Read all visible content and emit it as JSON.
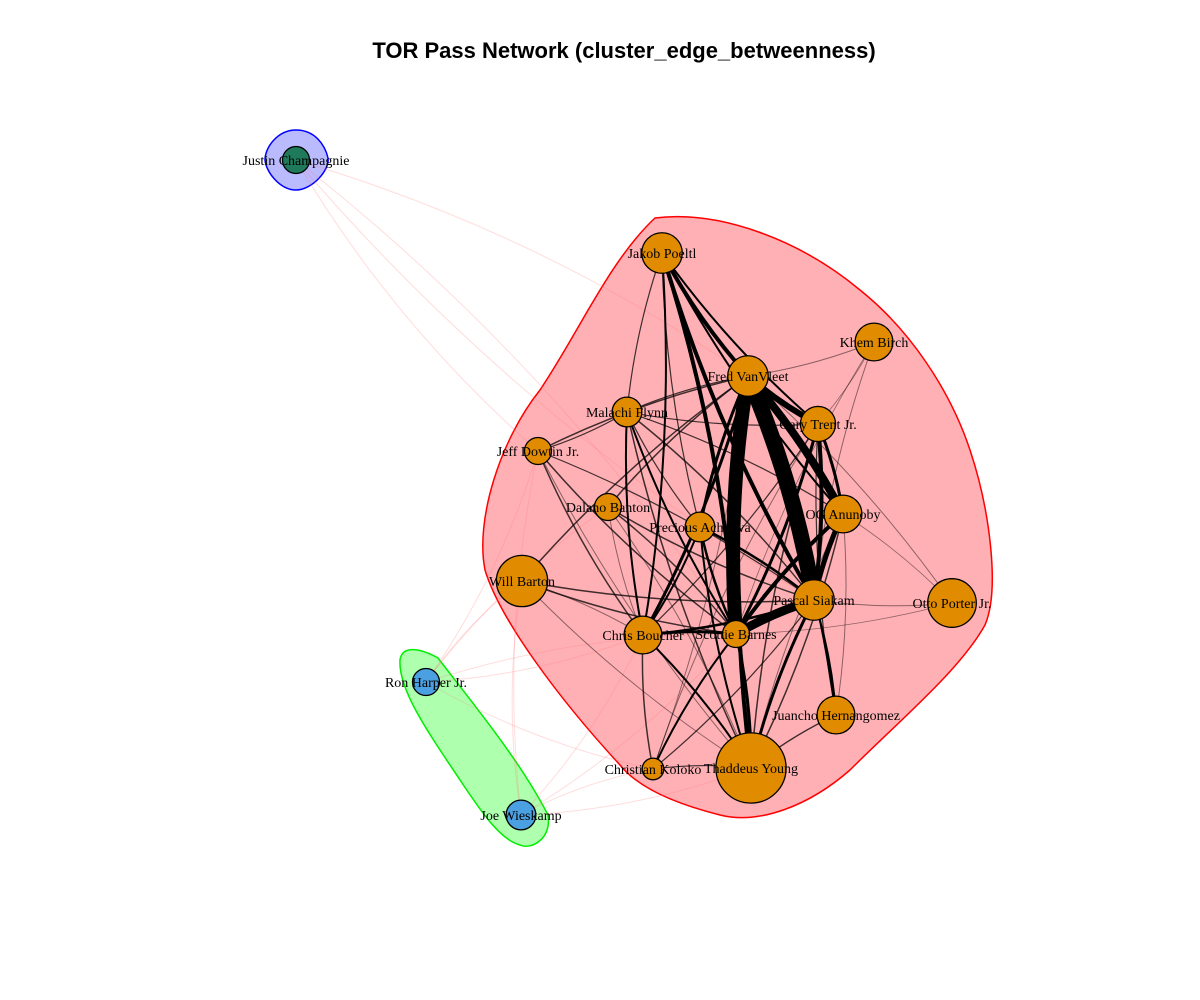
{
  "title": "TOR Pass Network (cluster_edge_betweenness)",
  "clusters": [
    {
      "id": "orange",
      "fill": "#ff8f96",
      "stroke": "#ff0000",
      "members": [
        "Jakob Poeltl",
        "Khem Birch",
        "Fred VanVleet",
        "Malachi Flynn",
        "Gary Trent Jr.",
        "Jeff Dowtin Jr.",
        "Dalano Banton",
        "Precious Achiuwa",
        "OG Anunoby",
        "Will Barton",
        "Pascal Siakam",
        "Otto Porter Jr.",
        "Chris Boucher",
        "Scottie Barnes",
        "Juancho Hernangomez",
        "Christian Koloko",
        "Thaddeus Young"
      ]
    },
    {
      "id": "green",
      "fill": "#8cff8c",
      "stroke": "#00ee00",
      "members": [
        "Ron Harper Jr.",
        "Joe Wieskamp"
      ]
    },
    {
      "id": "blue",
      "fill": "#9c9cff",
      "stroke": "#0000ff",
      "members": [
        "Justin Champagnie"
      ]
    }
  ],
  "node_colors": {
    "orange": "#e08b00",
    "green": "#4aa0e0",
    "blue": "#1e7a5a"
  },
  "nodes": [
    {
      "id": "Justin Champagnie",
      "label": "Justin Champagnie",
      "cluster": "blue",
      "size": 1.0
    },
    {
      "id": "Jakob Poeltl",
      "label": "Jakob Poeltl",
      "cluster": "orange",
      "size": 1.5
    },
    {
      "id": "Khem Birch",
      "label": "Khem Birch",
      "cluster": "orange",
      "size": 1.4
    },
    {
      "id": "Fred VanVleet",
      "label": "Fred VanVleet",
      "cluster": "orange",
      "size": 1.5
    },
    {
      "id": "Malachi Flynn",
      "label": "Malachi Flynn",
      "cluster": "orange",
      "size": 1.1
    },
    {
      "id": "Gary Trent Jr.",
      "label": "Gary Trent Jr.",
      "cluster": "orange",
      "size": 1.3
    },
    {
      "id": "Jeff Dowtin Jr.",
      "label": "Jeff Dowtin Jr.",
      "cluster": "orange",
      "size": 1.0
    },
    {
      "id": "Dalano Banton",
      "label": "Dalano Banton",
      "cluster": "orange",
      "size": 1.0
    },
    {
      "id": "Precious Achiuwa",
      "label": "Precious Achiuwa",
      "cluster": "orange",
      "size": 1.1
    },
    {
      "id": "OG Anunoby",
      "label": "OG Anunoby",
      "cluster": "orange",
      "size": 1.4
    },
    {
      "id": "Will Barton",
      "label": "Will Barton",
      "cluster": "orange",
      "size": 1.9
    },
    {
      "id": "Pascal Siakam",
      "label": "Pascal Siakam",
      "cluster": "orange",
      "size": 1.5
    },
    {
      "id": "Otto Porter Jr.",
      "label": "Otto Porter Jr.",
      "cluster": "orange",
      "size": 1.8
    },
    {
      "id": "Chris Boucher",
      "label": "Chris Boucher",
      "cluster": "orange",
      "size": 1.4
    },
    {
      "id": "Scottie Barnes",
      "label": "Scottie Barnes",
      "cluster": "orange",
      "size": 1.0
    },
    {
      "id": "Juancho Hernangomez",
      "label": "Juancho Hernangomez",
      "cluster": "orange",
      "size": 1.4
    },
    {
      "id": "Christian Koloko",
      "label": "Christian Koloko",
      "cluster": "orange",
      "size": 0.8
    },
    {
      "id": "Thaddeus Young",
      "label": "Thaddeus Young",
      "cluster": "orange",
      "size": 2.6
    },
    {
      "id": "Ron Harper Jr.",
      "label": "Ron Harper Jr.",
      "cluster": "green",
      "size": 1.0
    },
    {
      "id": "Joe Wieskamp",
      "label": "Joe Wieskamp",
      "cluster": "green",
      "size": 1.1
    }
  ],
  "edges": [
    [
      "Fred VanVleet",
      "Pascal Siakam",
      16
    ],
    [
      "Fred VanVleet",
      "Scottie Barnes",
      14
    ],
    [
      "Fred VanVleet",
      "OG Anunoby",
      8
    ],
    [
      "Fred VanVleet",
      "Gary Trent Jr.",
      6
    ],
    [
      "Fred VanVleet",
      "Jakob Poeltl",
      4
    ],
    [
      "Fred VanVleet",
      "Thaddeus Young",
      4
    ],
    [
      "Fred VanVleet",
      "Chris Boucher",
      3
    ],
    [
      "Fred VanVleet",
      "Precious Achiuwa",
      3
    ],
    [
      "Fred VanVleet",
      "Juancho Hernangomez",
      2
    ],
    [
      "Pascal Siakam",
      "Scottie Barnes",
      9
    ],
    [
      "Pascal Siakam",
      "OG Anunoby",
      5
    ],
    [
      "Pascal Siakam",
      "Gary Trent Jr.",
      4
    ],
    [
      "Pascal Siakam",
      "Jakob Poeltl",
      4
    ],
    [
      "Pascal Siakam",
      "Thaddeus Young",
      3
    ],
    [
      "Pascal Siakam",
      "Chris Boucher",
      2.5
    ],
    [
      "Pascal Siakam",
      "Precious Achiuwa",
      2.5
    ],
    [
      "Pascal Siakam",
      "Juancho Hernangomez",
      2
    ],
    [
      "Scottie Barnes",
      "Jakob Poeltl",
      4
    ],
    [
      "Scottie Barnes",
      "OG Anunoby",
      4
    ],
    [
      "Scottie Barnes",
      "Gary Trent Jr.",
      3
    ],
    [
      "Scottie Barnes",
      "Thaddeus Young",
      3
    ],
    [
      "Scottie Barnes",
      "Chris Boucher",
      3
    ],
    [
      "Scottie Barnes",
      "Precious Achiuwa",
      2.5
    ],
    [
      "Scottie Barnes",
      "Christian Koloko",
      2
    ],
    [
      "Scottie Barnes",
      "Malachi Flynn",
      2
    ],
    [
      "OG Anunoby",
      "Gary Trent Jr.",
      3
    ],
    [
      "OG Anunoby",
      "Jakob Poeltl",
      2
    ],
    [
      "Jakob Poeltl",
      "Gary Trent Jr.",
      2
    ],
    [
      "Jakob Poeltl",
      "Chris Boucher",
      2
    ],
    [
      "Malachi Flynn",
      "Chris Boucher",
      2
    ],
    [
      "Malachi Flynn",
      "Pascal Siakam",
      1.5
    ],
    [
      "Malachi Flynn",
      "Thaddeus Young",
      1.5
    ],
    [
      "Precious Achiuwa",
      "Chris Boucher",
      2
    ],
    [
      "Precious Achiuwa",
      "Thaddeus Young",
      2
    ],
    [
      "Chris Boucher",
      "Thaddeus Young",
      2
    ],
    [
      "Chris Boucher",
      "Christian Koloko",
      1.5
    ],
    [
      "Chris Boucher",
      "Jeff Dowtin Jr.",
      1.5
    ],
    [
      "Juancho Hernangomez",
      "Thaddeus Young",
      1.5
    ],
    [
      "Dalano Banton",
      "Scottie Barnes",
      1.5
    ],
    [
      "Dalano Banton",
      "Pascal Siakam",
      1.5
    ],
    [
      "Dalano Banton",
      "Fred VanVleet",
      1.5
    ],
    [
      "Jeff Dowtin Jr.",
      "Scottie Barnes",
      1.5
    ],
    [
      "Jeff Dowtin Jr.",
      "Fred VanVleet",
      1.5
    ],
    [
      "Will Barton",
      "Pascal Siakam",
      1.5
    ],
    [
      "Will Barton",
      "Fred VanVleet",
      1.5
    ],
    [
      "Will Barton",
      "Scottie Barnes",
      1.5
    ],
    [
      "Otto Porter Jr.",
      "Pascal Siakam",
      1
    ],
    [
      "Otto Porter Jr.",
      "Fred VanVleet",
      1
    ],
    [
      "Khem Birch",
      "Fred VanVleet",
      1
    ],
    [
      "Khem Birch",
      "Pascal Siakam",
      1
    ],
    [
      "Christian Koloko",
      "Thaddeus Young",
      1.2
    ],
    [
      "Christian Koloko",
      "Pascal Siakam",
      1.2
    ],
    [
      "Thaddeus Young",
      "Gary Trent Jr.",
      1.5
    ],
    [
      "Thaddeus Young",
      "OG Anunoby",
      1.5
    ],
    [
      "Jakob Poeltl",
      "Thaddeus Young",
      1.2
    ],
    [
      "Jakob Poeltl",
      "Precious Achiuwa",
      1.2
    ],
    [
      "Malachi Flynn",
      "Fred VanVleet",
      1.2
    ],
    [
      "Malachi Flynn",
      "Gary Trent Jr.",
      1.2
    ],
    [
      "Malachi Flynn",
      "OG Anunoby",
      1.2
    ],
    [
      "Malachi Flynn",
      "Precious Achiuwa",
      1.2
    ],
    [
      "Malachi Flynn",
      "Jakob Poeltl",
      1.2
    ],
    [
      "Jeff Dowtin Jr.",
      "Malachi Flynn",
      1.2
    ],
    [
      "Jeff Dowtin Jr.",
      "Pascal Siakam",
      1.2
    ],
    [
      "Jeff Dowtin Jr.",
      "Thaddeus Young",
      1
    ],
    [
      "Dalano Banton",
      "Thaddeus Young",
      1
    ],
    [
      "Dalano Banton",
      "Chris Boucher",
      1
    ],
    [
      "Will Barton",
      "Chris Boucher",
      1
    ],
    [
      "Will Barton",
      "Thaddeus Young",
      1
    ],
    [
      "Otto Porter Jr.",
      "Scottie Barnes",
      0.8
    ],
    [
      "Otto Porter Jr.",
      "OG Anunoby",
      0.8
    ],
    [
      "Khem Birch",
      "Gary Trent Jr.",
      0.8
    ],
    [
      "Khem Birch",
      "Scottie Barnes",
      0.8
    ],
    [
      "Gary Trent Jr.",
      "Chris Boucher",
      1.2
    ],
    [
      "Gary Trent Jr.",
      "Juancho Hernangomez",
      1.2
    ],
    [
      "OG Anunoby",
      "Juancho Hernangomez",
      1
    ],
    [
      "OG Anunoby",
      "Thaddeus Young",
      1
    ],
    [
      "Christian Koloko",
      "Gary Trent Jr.",
      1
    ],
    [
      "Christian Koloko",
      "Fred VanVleet",
      1
    ]
  ],
  "cross_edges": [
    [
      "Justin Champagnie",
      "Scottie Barnes"
    ],
    [
      "Justin Champagnie",
      "Pascal Siakam"
    ],
    [
      "Justin Champagnie",
      "Fred VanVleet"
    ],
    [
      "Justin Champagnie",
      "Jeff Dowtin Jr."
    ],
    [
      "Ron Harper Jr.",
      "Will Barton"
    ],
    [
      "Ron Harper Jr.",
      "Jeff Dowtin Jr."
    ],
    [
      "Ron Harper Jr.",
      "Dalano Banton"
    ],
    [
      "Ron Harper Jr.",
      "Chris Boucher"
    ],
    [
      "Ron Harper Jr.",
      "Scottie Barnes"
    ],
    [
      "Ron Harper Jr.",
      "Christian Koloko"
    ],
    [
      "Joe Wieskamp",
      "Will Barton"
    ],
    [
      "Joe Wieskamp",
      "Chris Boucher"
    ],
    [
      "Joe Wieskamp",
      "Christian Koloko"
    ],
    [
      "Joe Wieskamp",
      "Scottie Barnes"
    ],
    [
      "Joe Wieskamp",
      "Jeff Dowtin Jr."
    ],
    [
      "Joe Wieskamp",
      "Thaddeus Young"
    ]
  ]
}
